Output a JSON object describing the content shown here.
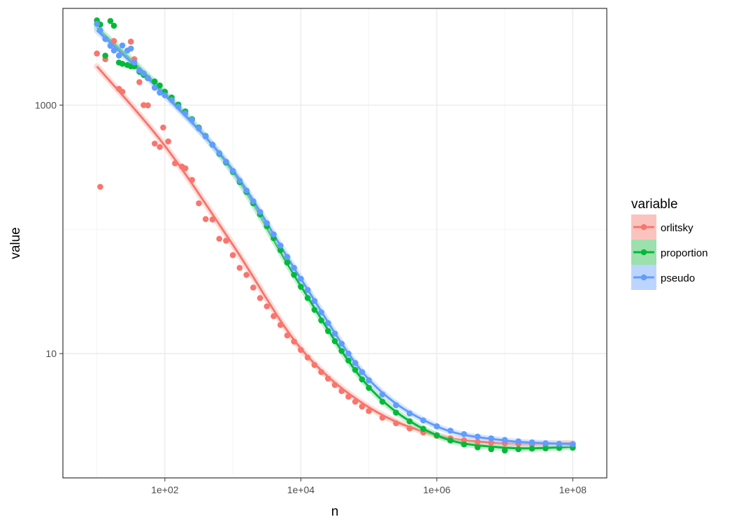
{
  "chart_data": {
    "type": "scatter",
    "xlabel": "n",
    "ylabel": "value",
    "x_scale": "log10",
    "y_scale": "log10",
    "xlim": [
      3.162,
      316200000
    ],
    "ylim": [
      1.0,
      6000
    ],
    "x_ticks": [
      {
        "value": 100,
        "label": "1e+02"
      },
      {
        "value": 10000,
        "label": "1e+04"
      },
      {
        "value": 1000000,
        "label": "1e+06"
      },
      {
        "value": 100000000,
        "label": "1e+08"
      }
    ],
    "y_ticks": [
      {
        "value": 10,
        "label": "10"
      },
      {
        "value": 1000,
        "label": "1000"
      }
    ],
    "grid": true,
    "legend": {
      "title": "variable",
      "position": "right",
      "entries": [
        "orlitsky",
        "proportion",
        "pseudo"
      ]
    },
    "series": [
      {
        "name": "orlitsky",
        "color": "#F8766D",
        "fill": "#FBC3BE",
        "points": [
          [
            10,
            2600
          ],
          [
            11.2,
            220
          ],
          [
            13.3,
            2340
          ],
          [
            17.8,
            3280
          ],
          [
            21.1,
            1350
          ],
          [
            23.7,
            1280
          ],
          [
            31.6,
            3240
          ],
          [
            35.5,
            2340
          ],
          [
            42.2,
            1530
          ],
          [
            48.7,
            1000
          ],
          [
            56.2,
            995
          ],
          [
            70.8,
            490
          ],
          [
            84.1,
            460
          ],
          [
            94.4,
            660
          ],
          [
            112,
            510
          ],
          [
            141,
            340
          ],
          [
            178,
            320
          ],
          [
            200,
            310
          ],
          [
            251,
            250
          ],
          [
            316,
            162
          ],
          [
            398,
            121
          ],
          [
            501,
            120
          ],
          [
            631,
            84
          ],
          [
            794,
            81
          ],
          [
            1000,
            62
          ],
          [
            1259,
            49
          ],
          [
            1585,
            43
          ],
          [
            1995,
            34
          ],
          [
            2512,
            28
          ],
          [
            3162,
            24
          ],
          [
            3981,
            20
          ],
          [
            5012,
            17
          ],
          [
            6310,
            14
          ],
          [
            7943,
            12.5
          ],
          [
            10000,
            10.7
          ],
          [
            12589,
            9.3
          ],
          [
            15849,
            8.1
          ],
          [
            19953,
            7.1
          ],
          [
            25119,
            6.3
          ],
          [
            31623,
            5.6
          ],
          [
            39811,
            5.0
          ],
          [
            50119,
            4.5
          ],
          [
            63096,
            4.1
          ],
          [
            79433,
            3.75
          ],
          [
            100000,
            3.45
          ],
          [
            158489,
            3.05
          ],
          [
            251189,
            2.75
          ],
          [
            398107,
            2.5
          ],
          [
            630957,
            2.32
          ],
          [
            1000000,
            2.18
          ],
          [
            1584893,
            2.08
          ],
          [
            2511886,
            2.0
          ],
          [
            3981072,
            1.95
          ],
          [
            6309573,
            1.92
          ],
          [
            10000000,
            1.9
          ],
          [
            15848932,
            1.88
          ],
          [
            25118864,
            1.86
          ],
          [
            39810717,
            1.85
          ],
          [
            63095734,
            1.84
          ],
          [
            100000000,
            1.84
          ]
        ],
        "fit": [
          [
            10,
            2050
          ],
          [
            100,
            470
          ],
          [
            1000,
            75
          ],
          [
            10000,
            11
          ],
          [
            100000,
            3.7
          ],
          [
            1000000,
            2.2
          ],
          [
            10000000,
            1.9
          ],
          [
            100000000,
            1.9
          ]
        ]
      },
      {
        "name": "proportion",
        "color": "#00BA38",
        "fill": "#9BE0AD",
        "points": [
          [
            10,
            4800
          ],
          [
            11.2,
            4450
          ],
          [
            13.3,
            2500
          ],
          [
            15.8,
            4750
          ],
          [
            17.8,
            4350
          ],
          [
            21.1,
            2200
          ],
          [
            23.7,
            2150
          ],
          [
            28.1,
            2100
          ],
          [
            31.6,
            2050
          ],
          [
            35.5,
            2050
          ],
          [
            42.2,
            1850
          ],
          [
            48.7,
            1750
          ],
          [
            56.2,
            1650
          ],
          [
            70.8,
            1550
          ],
          [
            84.1,
            1440
          ],
          [
            100,
            1280
          ],
          [
            126,
            1150
          ],
          [
            158,
            1010
          ],
          [
            200,
            890
          ],
          [
            251,
            770
          ],
          [
            316,
            660
          ],
          [
            398,
            565
          ],
          [
            501,
            480
          ],
          [
            631,
            405
          ],
          [
            794,
            345
          ],
          [
            1000,
            290
          ],
          [
            1259,
            240
          ],
          [
            1585,
            200
          ],
          [
            1995,
            162
          ],
          [
            2512,
            132
          ],
          [
            3162,
            106
          ],
          [
            3981,
            85
          ],
          [
            5012,
            68
          ],
          [
            6310,
            54
          ],
          [
            7943,
            43
          ],
          [
            10000,
            34.5
          ],
          [
            12589,
            28
          ],
          [
            15849,
            22.5
          ],
          [
            19953,
            18.5
          ],
          [
            25119,
            15.2
          ],
          [
            31623,
            12.6
          ],
          [
            39811,
            10.5
          ],
          [
            50119,
            8.8
          ],
          [
            63096,
            7.4
          ],
          [
            79433,
            6.2
          ],
          [
            100000,
            5.3
          ],
          [
            158489,
            4.1
          ],
          [
            251189,
            3.35
          ],
          [
            398107,
            2.85
          ],
          [
            630957,
            2.48
          ],
          [
            1000000,
            2.2
          ],
          [
            1584893,
            2.0
          ],
          [
            2511886,
            1.86
          ],
          [
            3981072,
            1.76
          ],
          [
            6309573,
            1.7
          ],
          [
            10000000,
            1.66
          ],
          [
            15848932,
            1.7
          ],
          [
            25118864,
            1.72
          ],
          [
            39810717,
            1.73
          ],
          [
            63095734,
            1.74
          ],
          [
            100000000,
            1.75
          ]
        ],
        "fit": [
          [
            10,
            4200
          ],
          [
            100,
            1250
          ],
          [
            1000,
            290
          ],
          [
            10000,
            35
          ],
          [
            100000,
            5.4
          ],
          [
            1000000,
            2.2
          ],
          [
            10000000,
            1.75
          ],
          [
            100000000,
            1.78
          ]
        ]
      },
      {
        "name": "pseudo",
        "color": "#619CFF",
        "fill": "#BCD5FE",
        "points": [
          [
            10,
            4500
          ],
          [
            11.2,
            4000
          ],
          [
            13.3,
            3400
          ],
          [
            15.8,
            3000
          ],
          [
            17.8,
            2750
          ],
          [
            21.1,
            2500
          ],
          [
            23.7,
            3020
          ],
          [
            28.1,
            2750
          ],
          [
            31.6,
            2850
          ],
          [
            35.5,
            2200
          ],
          [
            42.2,
            1900
          ],
          [
            48.7,
            1800
          ],
          [
            56.2,
            1650
          ],
          [
            70.8,
            1380
          ],
          [
            84.1,
            1260
          ],
          [
            100,
            1200
          ],
          [
            126,
            1100
          ],
          [
            158,
            970
          ],
          [
            200,
            860
          ],
          [
            251,
            760
          ],
          [
            316,
            650
          ],
          [
            398,
            560
          ],
          [
            501,
            480
          ],
          [
            631,
            410
          ],
          [
            794,
            350
          ],
          [
            1000,
            295
          ],
          [
            1259,
            246
          ],
          [
            1585,
            205
          ],
          [
            1995,
            168
          ],
          [
            2512,
            138
          ],
          [
            3162,
            112
          ],
          [
            3981,
            91
          ],
          [
            5012,
            74
          ],
          [
            6310,
            60
          ],
          [
            7943,
            49
          ],
          [
            10000,
            40
          ],
          [
            12589,
            32.5
          ],
          [
            15849,
            26.5
          ],
          [
            19953,
            21.5
          ],
          [
            25119,
            17.6
          ],
          [
            31623,
            14.5
          ],
          [
            39811,
            12
          ],
          [
            50119,
            10
          ],
          [
            63096,
            8.4
          ],
          [
            79433,
            7.1
          ],
          [
            100000,
            6.1
          ],
          [
            158489,
            4.7
          ],
          [
            251189,
            3.85
          ],
          [
            398107,
            3.3
          ],
          [
            630957,
            2.9
          ],
          [
            1000000,
            2.6
          ],
          [
            1584893,
            2.4
          ],
          [
            2511886,
            2.25
          ],
          [
            3981072,
            2.15
          ],
          [
            6309573,
            2.08
          ],
          [
            10000000,
            2.02
          ],
          [
            15848932,
            1.97
          ],
          [
            25118864,
            1.93
          ],
          [
            39810717,
            1.9
          ],
          [
            63095734,
            1.88
          ],
          [
            100000000,
            1.87
          ]
        ],
        "fit": [
          [
            10,
            4000
          ],
          [
            100,
            1200
          ],
          [
            1000,
            300
          ],
          [
            10000,
            40
          ],
          [
            100000,
            6.2
          ],
          [
            1000000,
            2.6
          ],
          [
            10000000,
            2.0
          ],
          [
            100000000,
            1.87
          ]
        ]
      }
    ]
  }
}
